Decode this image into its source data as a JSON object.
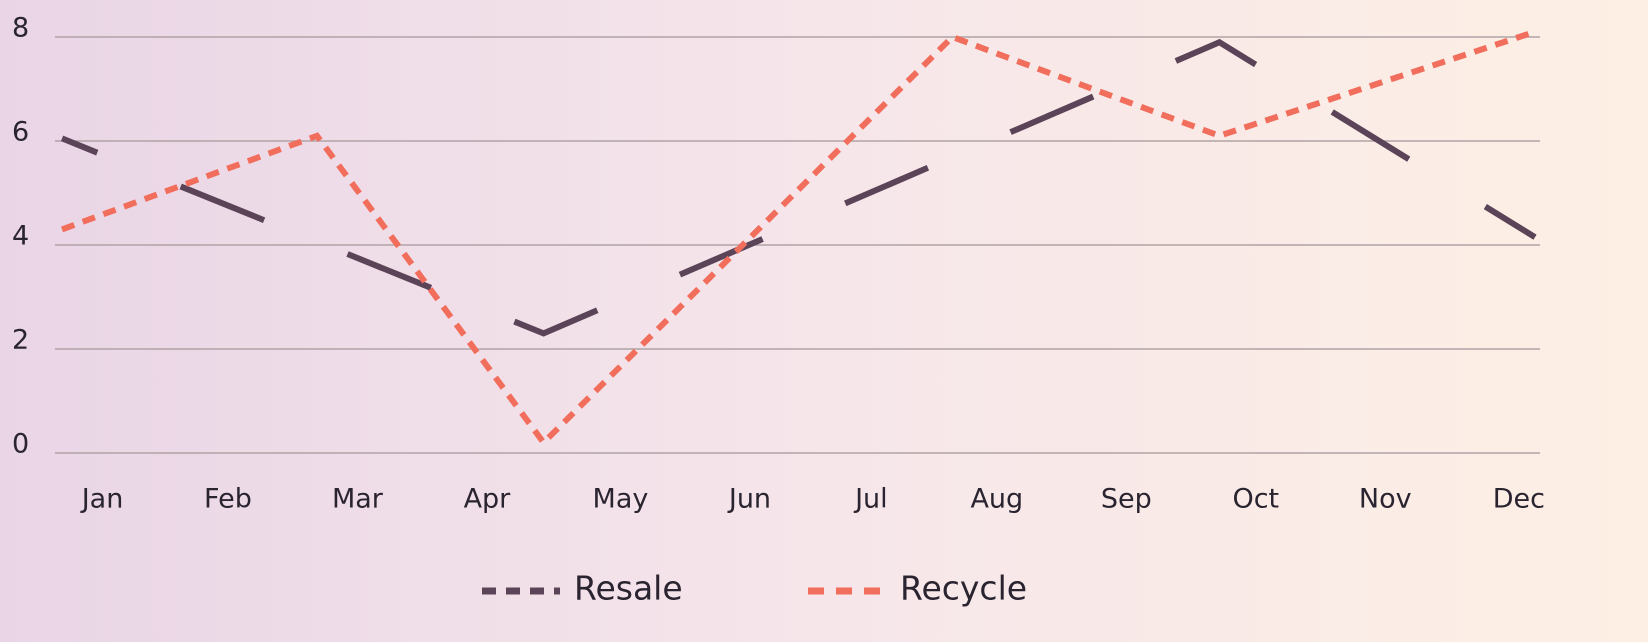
{
  "chart_data": {
    "type": "line",
    "xlim": [
      0,
      365
    ],
    "xticks": [
      {
        "value": 11,
        "label": "Jan"
      },
      {
        "value": 42,
        "label": "Feb"
      },
      {
        "value": 74,
        "label": "Mar"
      },
      {
        "value": 106,
        "label": "Apr"
      },
      {
        "value": 139,
        "label": "May"
      },
      {
        "value": 171,
        "label": "Jun"
      },
      {
        "value": 201,
        "label": "Jul"
      },
      {
        "value": 232,
        "label": "Aug"
      },
      {
        "value": 264,
        "label": "Sep"
      },
      {
        "value": 296,
        "label": "Oct"
      },
      {
        "value": 328,
        "label": "Nov"
      },
      {
        "value": 361,
        "label": "Dec"
      }
    ],
    "ylim": [
      0,
      8
    ],
    "yticks": [
      0,
      2,
      4,
      6,
      8
    ],
    "grid": true,
    "legend": "bottom",
    "series": [
      {
        "name": "Resale",
        "color": "#5b4358",
        "x": [
          1,
          120,
          287,
          365
        ],
        "values": [
          6.05,
          2.3,
          7.9,
          4.15
        ]
      },
      {
        "name": "Recycle",
        "color": "#f26e5c",
        "x": [
          1,
          64,
          120,
          221,
          287,
          365
        ],
        "values": [
          4.3,
          6.1,
          0.2,
          8.0,
          6.1,
          8.1
        ]
      }
    ]
  }
}
